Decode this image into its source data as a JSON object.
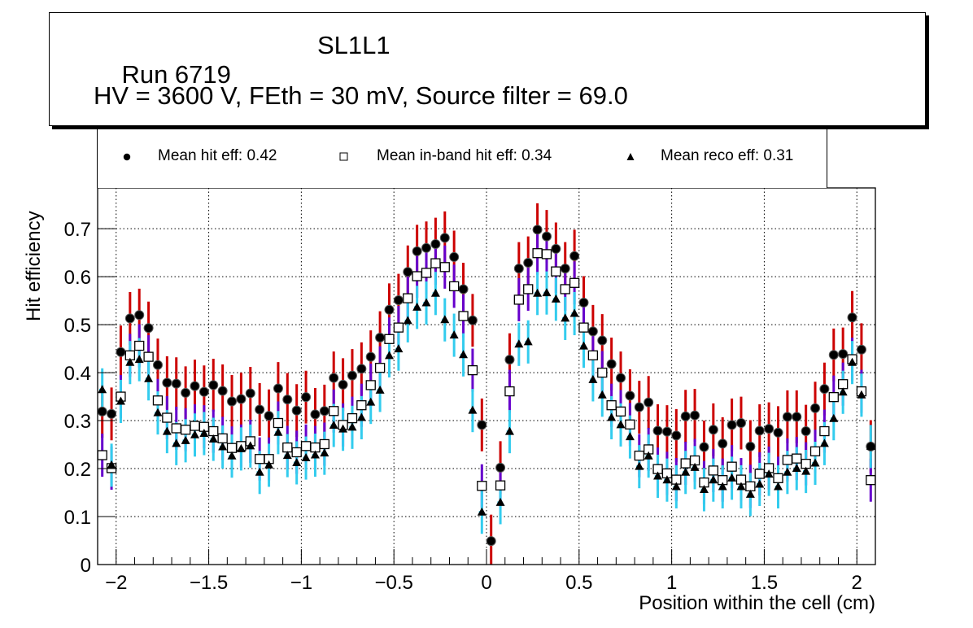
{
  "title": {
    "run": "Run 6719",
    "layer": "SL1L1",
    "conditions": "HV = 3600 V, FEth = 30 mV, Source filter = 69.0"
  },
  "legend": [
    {
      "label": "Mean hit  eff: 0.42",
      "marker": "filled-circle"
    },
    {
      "label": "Mean in-band hit eff: 0.34",
      "marker": "open-square"
    },
    {
      "label": "Mean reco eff: 0.31",
      "marker": "filled-triangle"
    }
  ],
  "colors": {
    "hit_error": "#cc0000",
    "inband_error": "#6600cc",
    "reco_error": "#33ccee",
    "marker": "#000000",
    "grid": "#000000"
  },
  "chart_data": {
    "type": "scatter",
    "title": "Run 6719 SL1L1 — HV = 3600 V, FEth = 30 mV, Source filter = 69.0",
    "xlabel": "Position within the cell (cm)",
    "ylabel": "Hit efficiency",
    "xlim": [
      -2.1,
      2.1
    ],
    "ylim": [
      0,
      0.785
    ],
    "grid": true,
    "legend_position": "top",
    "x_ticks": [
      -2,
      -1.5,
      -1,
      -0.5,
      0,
      0.5,
      1,
      1.5,
      2
    ],
    "x_tick_labels": [
      "−2",
      "−1.5",
      "−1",
      "−0.5",
      "0",
      "0.5",
      "1",
      "1.5",
      "2"
    ],
    "y_ticks": [
      0,
      0.1,
      0.2,
      0.3,
      0.4,
      0.5,
      0.6,
      0.7
    ],
    "y_tick_labels": [
      "0",
      "0.1",
      "0.2",
      "0.3",
      "0.4",
      "0.5",
      "0.6",
      "0.7"
    ],
    "bin_width": 0.05,
    "x_first": -2.075,
    "series": [
      {
        "name": "Mean hit  eff: 0.42",
        "marker": "filled-circle",
        "error_color": "#cc0000",
        "error": 0.055,
        "values": [
          0.319,
          0.314,
          0.443,
          0.513,
          0.52,
          0.493,
          0.416,
          0.379,
          0.377,
          0.358,
          0.372,
          0.36,
          0.374,
          0.362,
          0.34,
          0.345,
          0.357,
          0.323,
          0.31,
          0.367,
          0.344,
          0.321,
          0.349,
          0.313,
          0.32,
          0.389,
          0.375,
          0.394,
          0.408,
          0.433,
          0.473,
          0.531,
          0.551,
          0.61,
          0.653,
          0.66,
          0.668,
          0.681,
          0.641,
          0.574,
          0.509,
          0.291,
          0.049,
          0.202,
          0.427,
          0.617,
          0.629,
          0.698,
          0.684,
          0.658,
          0.617,
          0.643,
          0.546,
          0.486,
          0.467,
          0.418,
          0.389,
          0.352,
          0.328,
          0.338,
          0.279,
          0.277,
          0.269,
          0.309,
          0.311,
          0.245,
          0.281,
          0.252,
          0.291,
          0.295,
          0.246,
          0.279,
          0.283,
          0.275,
          0.308,
          0.308,
          0.278,
          0.326,
          0.366,
          0.437,
          0.439,
          0.515,
          0.448,
          0.246
        ]
      },
      {
        "name": "Mean in-band hit eff: 0.34",
        "marker": "open-square",
        "error_color": "#6600cc",
        "error": 0.045,
        "values": [
          0.228,
          0.201,
          0.35,
          0.436,
          0.456,
          0.433,
          0.342,
          0.306,
          0.284,
          0.281,
          0.289,
          0.287,
          0.278,
          0.263,
          0.243,
          0.247,
          0.257,
          0.22,
          0.22,
          0.295,
          0.244,
          0.234,
          0.247,
          0.244,
          0.251,
          0.32,
          0.291,
          0.305,
          0.332,
          0.374,
          0.41,
          0.47,
          0.494,
          0.555,
          0.601,
          0.608,
          0.628,
          0.62,
          0.58,
          0.518,
          0.405,
          0.164,
          null,
          0.165,
          0.361,
          0.552,
          0.574,
          0.649,
          0.647,
          0.611,
          0.574,
          0.587,
          0.494,
          0.436,
          0.4,
          0.332,
          0.319,
          0.292,
          0.227,
          0.24,
          0.199,
          0.19,
          0.177,
          0.211,
          0.217,
          0.171,
          0.196,
          0.176,
          0.204,
          0.177,
          0.163,
          0.189,
          0.201,
          0.18,
          0.218,
          0.221,
          0.21,
          0.236,
          0.278,
          0.349,
          0.376,
          0.428,
          0.361,
          0.176
        ]
      },
      {
        "name": "Mean reco eff: 0.31",
        "marker": "filled-triangle",
        "error_color": "#33ccee",
        "error": 0.045,
        "values": [
          0.364,
          0.207,
          0.34,
          0.421,
          0.427,
          0.387,
          0.316,
          0.277,
          0.252,
          0.258,
          0.27,
          0.273,
          0.261,
          0.245,
          0.226,
          0.241,
          0.247,
          0.192,
          0.207,
          0.275,
          0.227,
          0.212,
          0.222,
          0.228,
          0.232,
          0.29,
          0.282,
          0.286,
          0.306,
          0.338,
          0.363,
          0.435,
          0.449,
          0.508,
          0.536,
          0.545,
          0.565,
          0.51,
          0.478,
          0.437,
          0.321,
          0.109,
          null,
          0.129,
          0.277,
          0.459,
          0.464,
          0.565,
          0.566,
          0.553,
          0.513,
          0.523,
          0.455,
          0.385,
          0.353,
          0.306,
          0.291,
          0.266,
          0.204,
          0.226,
          0.184,
          0.176,
          0.162,
          0.192,
          0.202,
          0.156,
          0.176,
          0.162,
          0.18,
          0.162,
          0.146,
          0.167,
          0.188,
          0.162,
          0.192,
          0.2,
          0.194,
          0.211,
          0.252,
          0.304,
          0.359,
          0.421,
          0.353,
          0.246
        ]
      }
    ]
  }
}
